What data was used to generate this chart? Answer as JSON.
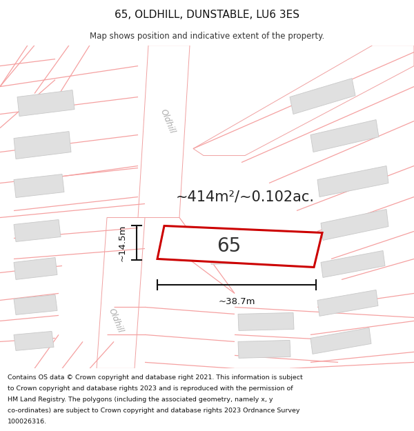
{
  "title": "65, OLDHILL, DUNSTABLE, LU6 3ES",
  "subtitle": "Map shows position and indicative extent of the property.",
  "footer_lines": [
    "Contains OS data © Crown copyright and database right 2021. This information is subject",
    "to Crown copyright and database rights 2023 and is reproduced with the permission of",
    "HM Land Registry. The polygons (including the associated geometry, namely x, y",
    "co-ordinates) are subject to Crown copyright and database rights 2023 Ordnance Survey",
    "100026316."
  ],
  "area_label": "~414m²/~0.102ac.",
  "width_label": "~38.7m",
  "height_label": "~14.5m",
  "property_number": "65",
  "map_bg": "#f2f2f2",
  "road_color": "#ffffff",
  "road_border_color": "#f5a0a0",
  "building_fill": "#e0e0e0",
  "building_border": "#c8c8c8",
  "property_fill": "#ffffff",
  "property_border": "#cc0000",
  "dim_color": "#111111",
  "text_color": "#222222",
  "street_label_color": "#aaaaaa",
  "line_color": "#f0a0a0"
}
